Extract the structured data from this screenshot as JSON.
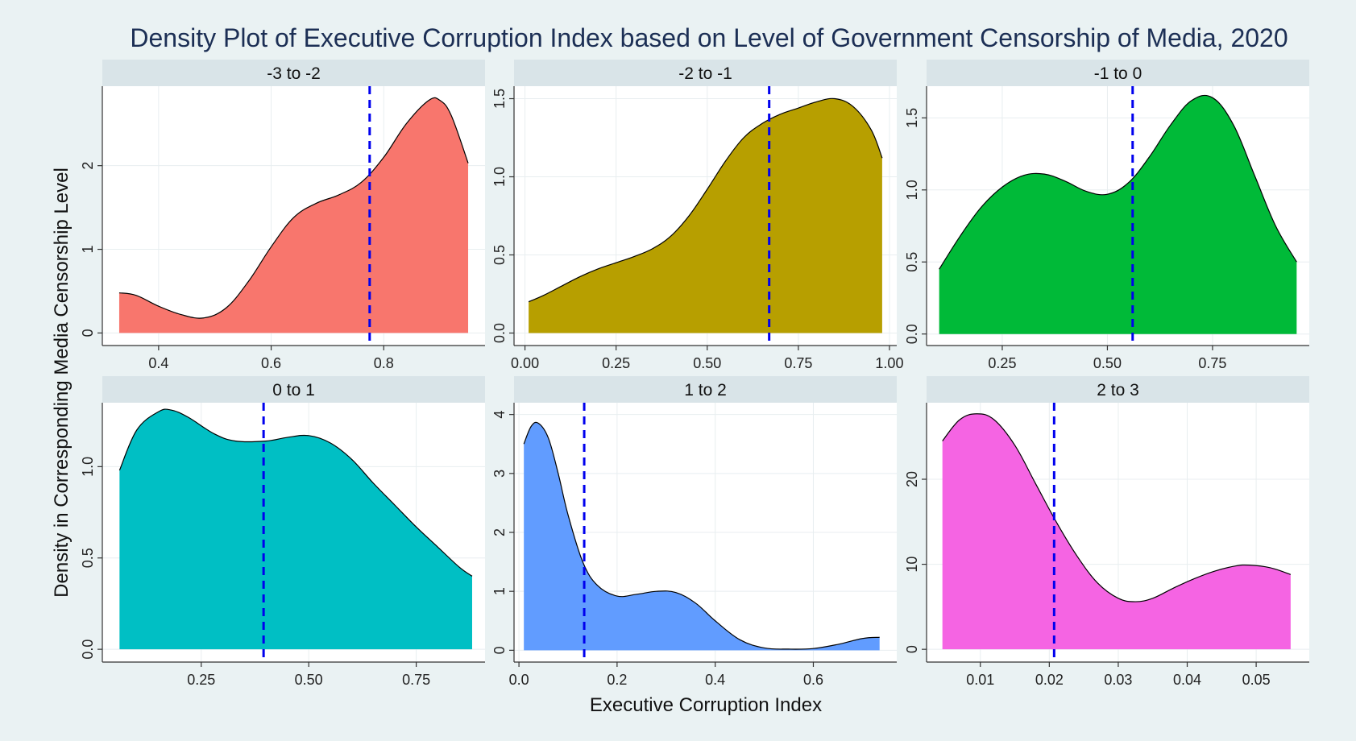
{
  "chart_data": {
    "type": "area",
    "title": "Density Plot of Executive Corruption Index based on Level of Government Censorship of Media, 2020",
    "xlabel": "Executive Corruption Index",
    "ylabel": "Density in Corresponding Media Censorship Level",
    "panels": [
      {
        "label": "-3 to -2",
        "color": "#f8766d",
        "xlim": [
          0.3,
          0.98
        ],
        "ylim": [
          -0.15,
          2.95
        ],
        "xticks": [
          0.4,
          0.6,
          0.8
        ],
        "xtick_labels": [
          "0.4",
          "0.6",
          "0.8"
        ],
        "yticks": [
          0,
          1,
          2
        ],
        "ytick_labels": [
          "0",
          "1",
          "2"
        ],
        "mean": 0.775,
        "x": [
          0.33,
          0.36,
          0.4,
          0.44,
          0.48,
          0.52,
          0.56,
          0.6,
          0.64,
          0.68,
          0.72,
          0.76,
          0.8,
          0.84,
          0.88,
          0.9,
          0.92,
          0.95
        ],
        "y": [
          0.48,
          0.45,
          0.32,
          0.22,
          0.18,
          0.3,
          0.62,
          1.03,
          1.38,
          1.55,
          1.65,
          1.8,
          2.1,
          2.5,
          2.78,
          2.78,
          2.6,
          2.03
        ]
      },
      {
        "label": "-2 to -1",
        "color": "#b79f00",
        "xlim": [
          -0.03,
          1.02
        ],
        "ylim": [
          -0.08,
          1.58
        ],
        "xticks": [
          0.0,
          0.25,
          0.5,
          0.75,
          1.0
        ],
        "xtick_labels": [
          "0.00",
          "0.25",
          "0.50",
          "0.75",
          "1.00"
        ],
        "yticks": [
          0.0,
          0.5,
          1.0,
          1.5
        ],
        "ytick_labels": [
          "0.0",
          "0.5",
          "1.0",
          "1.5"
        ],
        "mean": 0.67,
        "x": [
          0.01,
          0.05,
          0.1,
          0.15,
          0.2,
          0.25,
          0.3,
          0.35,
          0.4,
          0.45,
          0.5,
          0.55,
          0.6,
          0.65,
          0.7,
          0.75,
          0.8,
          0.85,
          0.9,
          0.95,
          0.98
        ],
        "y": [
          0.2,
          0.24,
          0.3,
          0.36,
          0.41,
          0.45,
          0.49,
          0.54,
          0.62,
          0.75,
          0.92,
          1.1,
          1.25,
          1.34,
          1.4,
          1.44,
          1.48,
          1.5,
          1.45,
          1.3,
          1.12
        ]
      },
      {
        "label": "-1 to 0",
        "color": "#00ba38",
        "xlim": [
          0.07,
          0.98
        ],
        "ylim": [
          -0.08,
          1.72
        ],
        "xticks": [
          0.25,
          0.5,
          0.75
        ],
        "xtick_labels": [
          "0.25",
          "0.50",
          "0.75"
        ],
        "yticks": [
          0.0,
          0.5,
          1.0,
          1.5
        ],
        "ytick_labels": [
          "0.0",
          "0.5",
          "1.0",
          "1.5"
        ],
        "mean": 0.56,
        "x": [
          0.1,
          0.15,
          0.2,
          0.25,
          0.3,
          0.35,
          0.4,
          0.45,
          0.5,
          0.55,
          0.6,
          0.65,
          0.7,
          0.75,
          0.8,
          0.85,
          0.9,
          0.95
        ],
        "y": [
          0.45,
          0.68,
          0.88,
          1.02,
          1.1,
          1.11,
          1.06,
          0.99,
          0.97,
          1.05,
          1.23,
          1.45,
          1.62,
          1.64,
          1.45,
          1.1,
          0.75,
          0.5
        ]
      },
      {
        "label": "0 to 1",
        "color": "#00bfc4",
        "xlim": [
          0.02,
          0.91
        ],
        "ylim": [
          -0.07,
          1.35
        ],
        "xticks": [
          0.25,
          0.5,
          0.75
        ],
        "xtick_labels": [
          "0.25",
          "0.50",
          "0.75"
        ],
        "yticks": [
          0.0,
          0.5,
          1.0
        ],
        "ytick_labels": [
          "0.0",
          "0.5",
          "1.0"
        ],
        "mean": 0.395,
        "x": [
          0.06,
          0.1,
          0.15,
          0.18,
          0.22,
          0.28,
          0.33,
          0.4,
          0.45,
          0.5,
          0.55,
          0.6,
          0.65,
          0.7,
          0.75,
          0.8,
          0.85,
          0.88
        ],
        "y": [
          0.98,
          1.2,
          1.3,
          1.31,
          1.27,
          1.18,
          1.14,
          1.14,
          1.16,
          1.17,
          1.13,
          1.04,
          0.91,
          0.79,
          0.67,
          0.56,
          0.45,
          0.4
        ]
      },
      {
        "label": "1 to 2",
        "color": "#619cff",
        "xlim": [
          -0.01,
          0.77
        ],
        "ylim": [
          -0.2,
          4.2
        ],
        "xticks": [
          0.0,
          0.2,
          0.4,
          0.6
        ],
        "xtick_labels": [
          "0.0",
          "0.2",
          "0.4",
          "0.6"
        ],
        "yticks": [
          0,
          1,
          2,
          3,
          4
        ],
        "ytick_labels": [
          "0",
          "1",
          "2",
          "3",
          "4"
        ],
        "mean": 0.133,
        "x": [
          0.01,
          0.025,
          0.04,
          0.06,
          0.08,
          0.1,
          0.13,
          0.16,
          0.2,
          0.24,
          0.28,
          0.32,
          0.36,
          0.4,
          0.45,
          0.5,
          0.55,
          0.6,
          0.65,
          0.7,
          0.735
        ],
        "y": [
          3.5,
          3.8,
          3.85,
          3.6,
          3.0,
          2.3,
          1.5,
          1.1,
          0.92,
          0.95,
          1.0,
          0.98,
          0.8,
          0.5,
          0.18,
          0.04,
          0.02,
          0.03,
          0.1,
          0.2,
          0.22
        ]
      },
      {
        "label": "2 to 3",
        "color": "#f564e3",
        "xlim": [
          0.0022,
          0.0577
        ],
        "ylim": [
          -1.5,
          29.0
        ],
        "xticks": [
          0.01,
          0.02,
          0.03,
          0.04,
          0.05
        ],
        "xtick_labels": [
          "0.01",
          "0.02",
          "0.03",
          "0.04",
          "0.05"
        ],
        "yticks": [
          0,
          10,
          20
        ],
        "ytick_labels": [
          "0",
          "10",
          "20"
        ],
        "mean": 0.0207,
        "x": [
          0.0045,
          0.007,
          0.0095,
          0.012,
          0.015,
          0.018,
          0.021,
          0.024,
          0.027,
          0.03,
          0.0325,
          0.035,
          0.038,
          0.041,
          0.044,
          0.047,
          0.049,
          0.052,
          0.055
        ],
        "y": [
          24.5,
          27.0,
          27.7,
          27.0,
          24.0,
          19.5,
          15.0,
          11.0,
          7.8,
          6.0,
          5.6,
          6.0,
          7.2,
          8.3,
          9.2,
          9.8,
          9.9,
          9.6,
          8.8
        ]
      }
    ]
  }
}
